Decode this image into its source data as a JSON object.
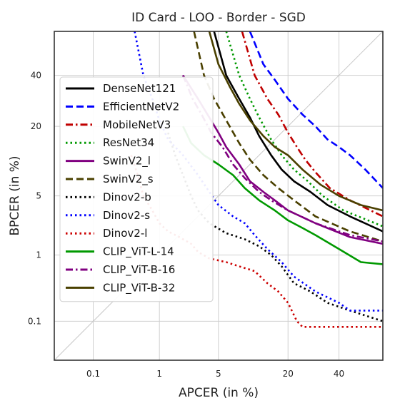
{
  "chart_data": {
    "type": "line",
    "title": "ID Card - LOO - Border - SGD",
    "xlabel": "APCER (in %)",
    "ylabel": "BPCER (in %)",
    "xscale": "probit",
    "yscale": "probit",
    "xlim": [
      0.02,
      60
    ],
    "ylim": [
      0.02,
      60
    ],
    "x_ticks": [
      0.1,
      1,
      5,
      20,
      40
    ],
    "y_ticks": [
      0.1,
      1,
      5,
      20,
      40
    ],
    "x_tick_labels": [
      "0.1",
      "1",
      "5",
      "20",
      "40"
    ],
    "y_tick_labels": [
      "0.1",
      "1",
      "5",
      "20",
      "40"
    ],
    "grid": true,
    "diagonal_reference": true,
    "legend_position": "left",
    "series": [
      {
        "name": "DenseNet121",
        "color": "#000000",
        "dash": "solid",
        "points": [
          [
            4.5,
            60
          ],
          [
            6,
            40
          ],
          [
            8,
            30
          ],
          [
            10,
            23
          ],
          [
            12,
            17
          ],
          [
            15,
            12
          ],
          [
            18,
            9
          ],
          [
            22,
            7
          ],
          [
            28,
            5.5
          ],
          [
            35,
            4
          ],
          [
            45,
            3
          ],
          [
            60,
            2
          ]
        ]
      },
      {
        "name": "EfficientNetV2",
        "color": "#0000ff",
        "dash": "dash",
        "points": [
          [
            10,
            60
          ],
          [
            13,
            45
          ],
          [
            16,
            38
          ],
          [
            20,
            30
          ],
          [
            25,
            24
          ],
          [
            30,
            20
          ],
          [
            35,
            16
          ],
          [
            40,
            14
          ],
          [
            45,
            12
          ],
          [
            52,
            9
          ],
          [
            60,
            6
          ]
        ]
      },
      {
        "name": "MobileNetV3",
        "color": "#c00000",
        "dash": "dashdot",
        "points": [
          [
            8.5,
            60
          ],
          [
            11,
            40
          ],
          [
            14,
            30
          ],
          [
            17,
            24
          ],
          [
            20,
            18
          ],
          [
            23,
            14
          ],
          [
            26,
            11
          ],
          [
            30,
            8.5
          ],
          [
            36,
            6
          ],
          [
            45,
            4.5
          ],
          [
            60,
            3
          ]
        ]
      },
      {
        "name": "ResNet34",
        "color": "#009900",
        "dash": "dot",
        "points": [
          [
            6,
            60
          ],
          [
            8,
            40
          ],
          [
            10,
            30
          ],
          [
            12,
            23
          ],
          [
            15,
            16
          ],
          [
            18,
            12
          ],
          [
            22,
            9
          ],
          [
            27,
            7
          ],
          [
            33,
            5
          ],
          [
            42,
            3.5
          ],
          [
            60,
            2.3
          ]
        ]
      },
      {
        "name": "SwinV2_l",
        "color": "#800080",
        "dash": "solid",
        "points": [
          [
            2,
            40
          ],
          [
            3,
            30
          ],
          [
            4,
            23
          ],
          [
            5,
            18
          ],
          [
            6,
            14
          ],
          [
            8,
            10
          ],
          [
            10,
            7
          ],
          [
            13,
            5.5
          ],
          [
            16,
            4.5
          ],
          [
            20,
            3.5
          ],
          [
            30,
            2.5
          ],
          [
            45,
            1.7
          ],
          [
            60,
            1.4
          ]
        ]
      },
      {
        "name": "SwinV2_s",
        "color": "#4a4000",
        "dash": "dash",
        "points": [
          [
            2.7,
            60
          ],
          [
            3.5,
            40
          ],
          [
            4.5,
            30
          ],
          [
            6,
            22
          ],
          [
            8,
            15
          ],
          [
            10,
            11
          ],
          [
            13,
            8
          ],
          [
            17,
            6
          ],
          [
            22,
            4.5
          ],
          [
            30,
            3
          ],
          [
            45,
            2
          ],
          [
            60,
            1.5
          ]
        ]
      },
      {
        "name": "Dinov2-b",
        "color": "#000000",
        "dash": "dot",
        "points": [
          [
            1.3,
            18
          ],
          [
            1.6,
            12
          ],
          [
            2,
            8
          ],
          [
            2.5,
            5
          ],
          [
            3,
            3.5
          ],
          [
            4,
            2.5
          ],
          [
            6,
            1.9
          ],
          [
            9,
            1.6
          ],
          [
            12,
            1.3
          ],
          [
            15,
            1
          ],
          [
            18,
            0.7
          ],
          [
            22,
            0.4
          ],
          [
            28,
            0.3
          ],
          [
            35,
            0.2
          ],
          [
            45,
            0.15
          ],
          [
            60,
            0.1
          ]
        ]
      },
      {
        "name": "Dinov2-s",
        "color": "#0000ff",
        "dash": "dot",
        "points": [
          [
            0.45,
            60
          ],
          [
            0.6,
            40
          ],
          [
            0.8,
            30
          ],
          [
            1,
            22
          ],
          [
            1.3,
            16
          ],
          [
            2,
            12
          ],
          [
            3,
            8
          ],
          [
            4,
            5.5
          ],
          [
            5,
            4
          ],
          [
            7,
            3
          ],
          [
            9,
            2.5
          ],
          [
            11,
            1.8
          ],
          [
            14,
            1.2
          ],
          [
            18,
            0.8
          ],
          [
            22,
            0.5
          ],
          [
            30,
            0.3
          ],
          [
            40,
            0.2
          ],
          [
            45,
            0.15
          ],
          [
            60,
            0.15
          ]
        ]
      },
      {
        "name": "Dinov2-l",
        "color": "#cc0000",
        "dash": "dot",
        "points": [
          [
            0.4,
            12
          ],
          [
            0.5,
            8
          ],
          [
            0.6,
            5
          ],
          [
            0.8,
            3.5
          ],
          [
            1,
            2.5
          ],
          [
            1.3,
            2
          ],
          [
            1.8,
            1.7
          ],
          [
            2.5,
            1.4
          ],
          [
            3,
            1.1
          ],
          [
            4,
            0.9
          ],
          [
            6,
            0.8
          ],
          [
            8,
            0.7
          ],
          [
            11,
            0.6
          ],
          [
            14,
            0.4
          ],
          [
            17,
            0.3
          ],
          [
            20,
            0.2
          ],
          [
            23,
            0.1
          ],
          [
            25,
            0.08
          ],
          [
            60,
            0.08
          ]
        ]
      },
      {
        "name": "CLIP_ViT-L-14",
        "color": "#009900",
        "dash": "solid",
        "points": [
          [
            2,
            20
          ],
          [
            2.5,
            15
          ],
          [
            3.5,
            12
          ],
          [
            5,
            10
          ],
          [
            7,
            8
          ],
          [
            9,
            6
          ],
          [
            12,
            4.5
          ],
          [
            16,
            3.5
          ],
          [
            20,
            2.7
          ],
          [
            25,
            2.2
          ],
          [
            30,
            1.8
          ],
          [
            40,
            1.2
          ],
          [
            50,
            0.8
          ],
          [
            60,
            0.75
          ]
        ]
      },
      {
        "name": "CLIP_ViT-B-16",
        "color": "#800080",
        "dash": "dashdot",
        "points": [
          [
            2,
            40
          ],
          [
            2.6,
            30
          ],
          [
            3.3,
            24
          ],
          [
            4.2,
            18
          ],
          [
            5.5,
            14
          ],
          [
            7,
            10
          ],
          [
            9,
            7.5
          ],
          [
            12,
            5.5
          ],
          [
            15,
            4.5
          ],
          [
            20,
            3.5
          ],
          [
            30,
            2.5
          ],
          [
            45,
            1.8
          ],
          [
            60,
            1.5
          ]
        ]
      },
      {
        "name": "CLIP_ViT-B-32",
        "color": "#4a4000",
        "dash": "solid",
        "points": [
          [
            4,
            60
          ],
          [
            5,
            45
          ],
          [
            6.5,
            35
          ],
          [
            8,
            28
          ],
          [
            10,
            22
          ],
          [
            13,
            17
          ],
          [
            16,
            14
          ],
          [
            20,
            12
          ],
          [
            25,
            9
          ],
          [
            32,
            6.5
          ],
          [
            40,
            5
          ],
          [
            50,
            4
          ],
          [
            60,
            3.5
          ]
        ]
      }
    ]
  }
}
